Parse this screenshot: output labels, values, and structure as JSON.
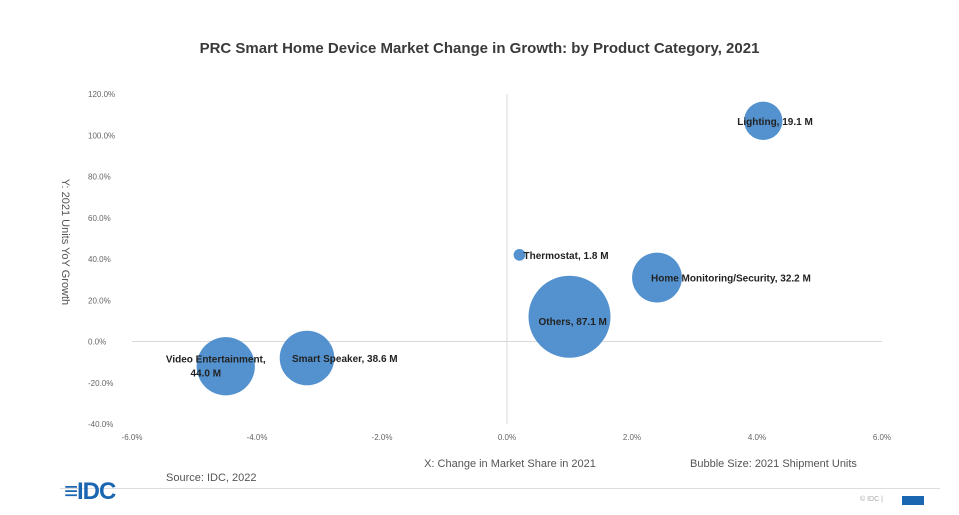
{
  "chart_data": {
    "type": "scatter",
    "title": "PRC Smart Home Device Market Change in Growth: by Product Category, 2021",
    "xlabel": "X: Change in Market Share in 2021",
    "ylabel": "Y: 2021 Units YoY Growth",
    "size_label": "Bubble Size: 2021 Shipment Units",
    "xlim": [
      -6.0,
      6.0
    ],
    "ylim": [
      -40.0,
      120.0
    ],
    "x_ticks": [
      "-6.0%",
      "-4.0%",
      "-2.0%",
      "0.0%",
      "2.0%",
      "4.0%",
      "6.0%"
    ],
    "y_ticks": [
      "-40.0%",
      "-20.0%",
      "0.0%",
      "20.0%",
      "40.0%",
      "60.0%",
      "80.0%",
      "100.0%",
      "120.0%"
    ],
    "bubble_color": "#4a8ccc",
    "points": [
      {
        "label": "Video Entertainment,",
        "label2": "44.0 M",
        "x": -4.5,
        "y": -12.0,
        "size": 44.0
      },
      {
        "label": "Smart Speaker,  38.6 M",
        "x": -3.2,
        "y": -8.0,
        "size": 38.6
      },
      {
        "label": "Thermostat,  1.8 M",
        "x": 0.2,
        "y": 42.0,
        "size": 1.8
      },
      {
        "label": "Others,  87.1 M",
        "x": 1.0,
        "y": 12.0,
        "size": 87.1
      },
      {
        "label": "Home Monitoring/Security,  32.2 M",
        "x": 2.4,
        "y": 31.0,
        "size": 32.2
      },
      {
        "label": "Lighting,  19.1 M",
        "x": 4.1,
        "y": 107.0,
        "size": 19.1
      }
    ]
  },
  "footer": {
    "source": "Source: IDC, 2022",
    "logo": "≡IDC",
    "copyright": "© IDC |"
  }
}
